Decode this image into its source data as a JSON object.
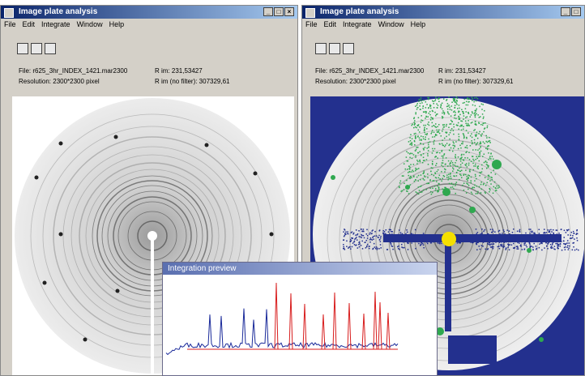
{
  "windows": [
    {
      "title": "Image plate analysis",
      "menu": [
        "File",
        "Edit",
        "Integrate",
        "Window",
        "Help"
      ],
      "file": "File: r625_3hr_INDEX_1421.mar2300",
      "rim": "R im: 231,53427",
      "resolution": "Resolution: 2300*2300 pixel",
      "rim_nofilter": "R im (no filter): 307329,61"
    },
    {
      "title": "Image plate analysis",
      "menu": [
        "File",
        "Edit",
        "Integrate",
        "Window",
        "Help"
      ],
      "file": "File: r625_3hr_INDEX_1421.mar2300",
      "rim": "R im: 231,53427",
      "resolution": "Resolution: 2300*2300 pixel",
      "rim_nofilter": "R im (no filter): 307329,61"
    }
  ],
  "preview": {
    "title": "Integration preview"
  }
}
